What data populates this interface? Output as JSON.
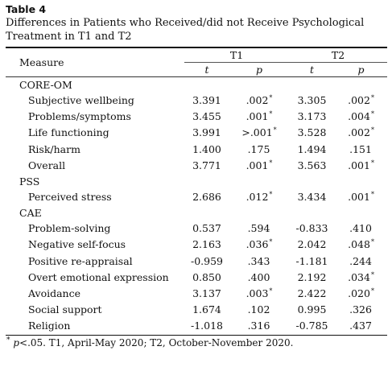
{
  "table": {
    "label": "Table 4",
    "title": "Differences in Patients who Received/did not Receive Psychological Treatment in T1 and T2",
    "header": {
      "measure": "Measure",
      "group1": "T1",
      "group2": "T2",
      "stat_t": "t",
      "stat_p": "p"
    },
    "sections": [
      {
        "name": "CORE-OM",
        "rows": [
          {
            "label": "Subjective wellbeing",
            "t1_t": "3.391",
            "t1_p": ".002",
            "t1_sig": "*",
            "t2_t": "3.305",
            "t2_p": ".002",
            "t2_sig": "*"
          },
          {
            "label": "Problems/symptoms",
            "t1_t": "3.455",
            "t1_p": ".001",
            "t1_sig": "*",
            "t2_t": "3.173",
            "t2_p": ".004",
            "t2_sig": "*"
          },
          {
            "label": "Life functioning",
            "t1_t": "3.991",
            "t1_p": ">.001",
            "t1_sig": "*",
            "t2_t": "3.528",
            "t2_p": ".002",
            "t2_sig": "*"
          },
          {
            "label": "Risk/harm",
            "t1_t": "1.400",
            "t1_p": ".175",
            "t1_sig": "",
            "t2_t": "1.494",
            "t2_p": ".151",
            "t2_sig": ""
          },
          {
            "label": "Overall",
            "t1_t": "3.771",
            "t1_p": ".001",
            "t1_sig": "*",
            "t2_t": "3.563",
            "t2_p": ".001",
            "t2_sig": "*"
          }
        ]
      },
      {
        "name": "PSS",
        "rows": [
          {
            "label": "Perceived stress",
            "t1_t": "2.686",
            "t1_p": ".012",
            "t1_sig": "*",
            "t2_t": "3.434",
            "t2_p": ".001",
            "t2_sig": "*"
          }
        ]
      },
      {
        "name": "CAE",
        "rows": [
          {
            "label": "Problem-solving",
            "t1_t": "0.537",
            "t1_p": ".594",
            "t1_sig": "",
            "t2_t": "-0.833",
            "t2_p": ".410",
            "t2_sig": ""
          },
          {
            "label": "Negative self-focus",
            "t1_t": "2.163",
            "t1_p": ".036",
            "t1_sig": "*",
            "t2_t": "2.042",
            "t2_p": ".048",
            "t2_sig": "*"
          },
          {
            "label": "Positive re-appraisal",
            "t1_t": "-0.959",
            "t1_p": ".343",
            "t1_sig": "",
            "t2_t": "-1.181",
            "t2_p": ".244",
            "t2_sig": ""
          },
          {
            "label": "Overt emotional expression",
            "t1_t": "0.850",
            "t1_p": ".400",
            "t1_sig": "",
            "t2_t": "2.192",
            "t2_p": ".034",
            "t2_sig": "*"
          },
          {
            "label": "Avoidance",
            "t1_t": "3.137",
            "t1_p": ".003",
            "t1_sig": "*",
            "t2_t": "2.422",
            "t2_p": ".020",
            "t2_sig": "*"
          },
          {
            "label": "Social support",
            "t1_t": "1.674",
            "t1_p": ".102",
            "t1_sig": "",
            "t2_t": "0.995",
            "t2_p": ".326",
            "t2_sig": ""
          },
          {
            "label": "Religion",
            "t1_t": "-1.018",
            "t1_p": ".316",
            "t1_sig": "",
            "t2_t": "-0.785",
            "t2_p": ".437",
            "t2_sig": ""
          }
        ]
      }
    ],
    "footnote": {
      "mark": "*",
      "p": "p",
      "text": "<.05. T1, April-May 2020; T2, October-November 2020."
    }
  }
}
